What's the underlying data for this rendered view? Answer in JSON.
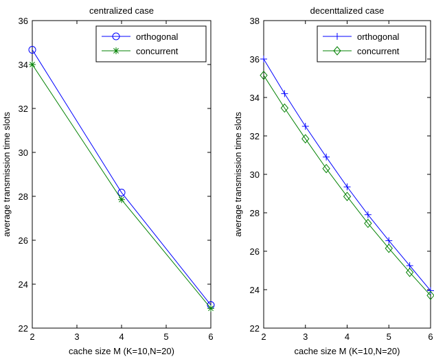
{
  "chart_data": [
    {
      "type": "line",
      "title": "centralized case",
      "xlabel": "cache size M (K=10,N=20)",
      "ylabel": "average transmission time slots",
      "xlim": [
        2,
        6
      ],
      "ylim": [
        22,
        36
      ],
      "xticks": [
        2,
        3,
        4,
        5,
        6
      ],
      "yticks": [
        22,
        24,
        26,
        28,
        30,
        32,
        34,
        36
      ],
      "grid": false,
      "legend_position": "top-right",
      "series": [
        {
          "name": "orthogonal",
          "color": "#0000ff",
          "marker": "circle",
          "x": [
            2,
            4,
            6
          ],
          "y": [
            34.67,
            28.17,
            23.05
          ]
        },
        {
          "name": "concurrent",
          "color": "#008000",
          "marker": "asterisk",
          "x": [
            2,
            4,
            6
          ],
          "y": [
            34.0,
            27.85,
            22.9
          ]
        }
      ]
    },
    {
      "type": "line",
      "title": "decenttalized case",
      "xlabel": "cache size M (K=10,N=20)",
      "ylabel": "average transmission time slots",
      "xlim": [
        2,
        6
      ],
      "ylim": [
        22,
        38
      ],
      "xticks": [
        2,
        3,
        4,
        5,
        6
      ],
      "yticks": [
        22,
        24,
        26,
        28,
        30,
        32,
        34,
        36,
        38
      ],
      "grid": false,
      "legend_position": "top-right",
      "series": [
        {
          "name": "orthogonal",
          "color": "#0000ff",
          "marker": "plus",
          "x": [
            2,
            2.5,
            3,
            3.5,
            4,
            4.5,
            5,
            5.5,
            6
          ],
          "y": [
            36.0,
            34.2,
            32.5,
            30.9,
            29.35,
            27.9,
            26.55,
            25.25,
            23.95
          ]
        },
        {
          "name": "concurrent",
          "color": "#008000",
          "marker": "diamond",
          "x": [
            2,
            2.5,
            3,
            3.5,
            4,
            4.5,
            5,
            5.5,
            6
          ],
          "y": [
            35.15,
            33.45,
            31.85,
            30.3,
            28.85,
            27.45,
            26.15,
            24.9,
            23.7
          ]
        }
      ]
    }
  ]
}
